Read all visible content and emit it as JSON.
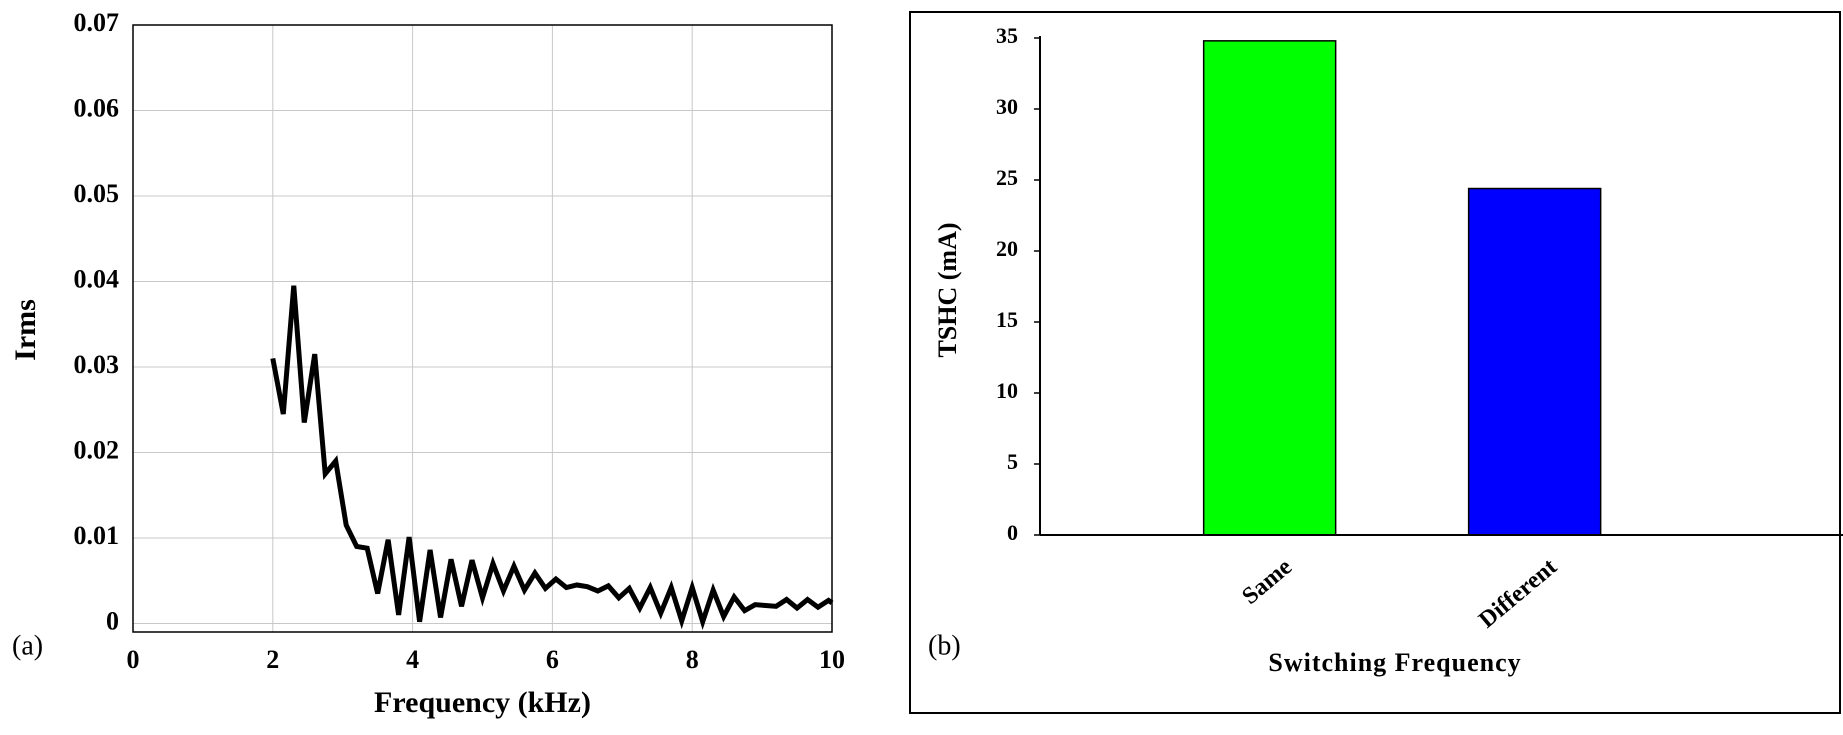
{
  "chart_data": [
    {
      "type": "line",
      "panel_label": "(a)",
      "xlabel": "Frequency (kHz)",
      "ylabel": "Irms",
      "x": [
        2.0,
        2.15,
        2.3,
        2.45,
        2.6,
        2.75,
        2.9,
        3.05,
        3.2,
        3.35,
        3.5,
        3.65,
        3.8,
        3.95,
        4.1,
        4.25,
        4.4,
        4.55,
        4.7,
        4.85,
        5.0,
        5.15,
        5.3,
        5.45,
        5.6,
        5.75,
        5.9,
        6.05,
        6.2,
        6.35,
        6.5,
        6.65,
        6.8,
        6.95,
        7.1,
        7.25,
        7.4,
        7.55,
        7.7,
        7.85,
        8.0,
        8.15,
        8.3,
        8.45,
        8.6,
        8.75,
        8.9,
        9.05,
        9.2,
        9.35,
        9.5,
        9.65,
        9.8,
        9.95,
        10.0
      ],
      "series": [
        {
          "color": "#000000",
          "values": [
            0.031,
            0.0245,
            0.0395,
            0.0235,
            0.0315,
            0.0175,
            0.019,
            0.0115,
            0.009,
            0.0088,
            0.0035,
            0.0098,
            0.001,
            0.0101,
            0.0002,
            0.0086,
            0.0007,
            0.0075,
            0.002,
            0.0074,
            0.003,
            0.007,
            0.0038,
            0.0067,
            0.0039,
            0.0059,
            0.0041,
            0.0052,
            0.0042,
            0.0045,
            0.0043,
            0.0038,
            0.0044,
            0.003,
            0.0041,
            0.0018,
            0.0042,
            0.0012,
            0.0042,
            0.0003,
            0.0042,
            0.0002,
            0.0039,
            0.0008,
            0.0031,
            0.0015,
            0.0022,
            0.0021,
            0.002,
            0.0028,
            0.0018,
            0.0028,
            0.0019,
            0.0027,
            0.0024
          ]
        }
      ],
      "xlim": [
        0,
        10
      ],
      "xticks": [
        0,
        2,
        4,
        6,
        8,
        10
      ],
      "ylim": [
        -0.001,
        0.07
      ],
      "yticks": [
        0,
        0.01,
        0.02,
        0.03,
        0.04,
        0.05,
        0.06,
        0.07
      ],
      "grid": true
    },
    {
      "type": "bar",
      "panel_label": "(b)",
      "xlabel": "Switching Frequency",
      "ylabel": "TSHC (mA)",
      "categories": [
        "Same",
        "Different"
      ],
      "values": [
        34.8,
        24.4
      ],
      "colors": [
        "#00ff00",
        "#0000ff"
      ],
      "ylim": [
        0,
        35
      ],
      "yticks": [
        0,
        5,
        10,
        15,
        20,
        25,
        30,
        35
      ],
      "grid": false
    }
  ]
}
